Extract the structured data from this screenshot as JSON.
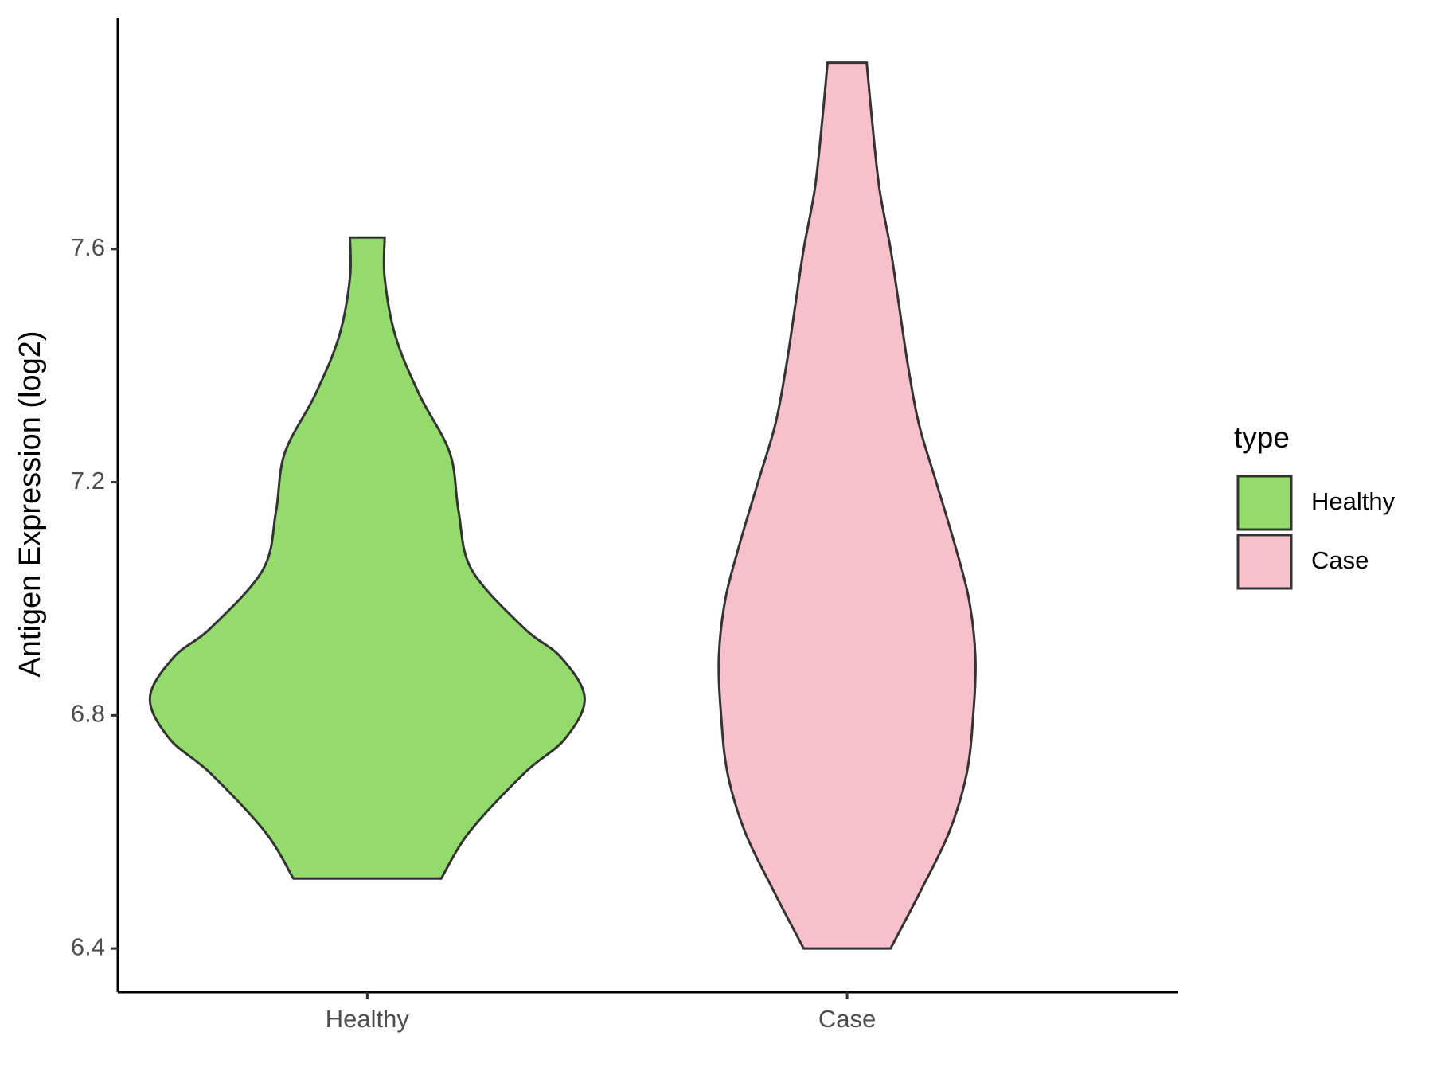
{
  "chart_data": {
    "type": "violin",
    "y_label": "Antigen Expression (log2)",
    "categories": [
      "Healthy",
      "Case"
    ],
    "legend_title": "type",
    "legend_position": "right",
    "ylim": [
      6.325,
      7.996
    ],
    "yticks": [
      6.4,
      6.8,
      7.2,
      7.6
    ],
    "series": [
      {
        "name": "Healthy",
        "color": "#93dc6b",
        "y": [
          6.52,
          6.6,
          6.7,
          6.76,
          6.83,
          6.9,
          6.95,
          7.05,
          7.15,
          7.25,
          7.35,
          7.45,
          7.55,
          7.62
        ],
        "density": [
          0.34,
          0.47,
          0.72,
          0.91,
          1.0,
          0.89,
          0.72,
          0.48,
          0.42,
          0.38,
          0.24,
          0.13,
          0.08,
          0.08
        ]
      },
      {
        "name": "Case",
        "color": "#f7c0cb",
        "y": [
          6.4,
          6.5,
          6.6,
          6.7,
          6.8,
          6.9,
          7.0,
          7.1,
          7.2,
          7.3,
          7.4,
          7.5,
          7.6,
          7.7,
          7.8,
          7.92
        ],
        "density": [
          0.2,
          0.34,
          0.47,
          0.55,
          0.58,
          0.59,
          0.56,
          0.49,
          0.41,
          0.33,
          0.28,
          0.24,
          0.2,
          0.15,
          0.12,
          0.09
        ]
      }
    ]
  }
}
